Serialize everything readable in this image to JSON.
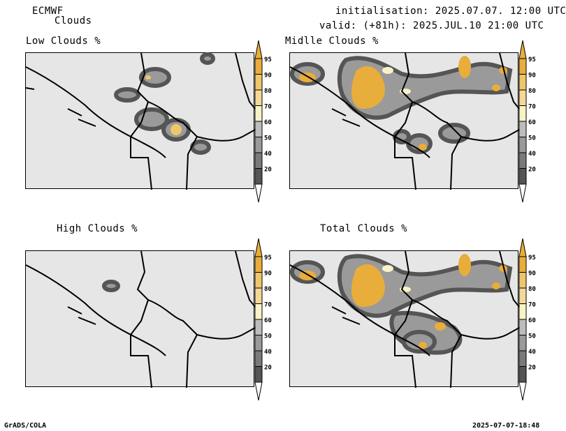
{
  "header": {
    "model": "ECMWF",
    "product": "Clouds",
    "init": "initialisation: 2025.07.07. 12:00 UTC",
    "valid": "valid: (+81h): 2025.JUL.10 21:00 UTC"
  },
  "panels": [
    {
      "title": "Low Clouds %"
    },
    {
      "title": "Midlle Clouds %"
    },
    {
      "title": "High Clouds %"
    },
    {
      "title": "Total Clouds %"
    }
  ],
  "colorbar": {
    "levels": [
      "20",
      "40",
      "50",
      "60",
      "70",
      "80",
      "90",
      "95"
    ],
    "colors": [
      "#555555",
      "#7a7a7a",
      "#9a9a9a",
      "#bdbdbd",
      "#f7f3c6",
      "#f3d896",
      "#efc66a",
      "#e8ad3a"
    ],
    "under_color": "#ffffff",
    "over_color": "#e8ad3a"
  },
  "footer": {
    "left": "GrADS/COLA",
    "right": "2025-07-07-18:48"
  }
}
